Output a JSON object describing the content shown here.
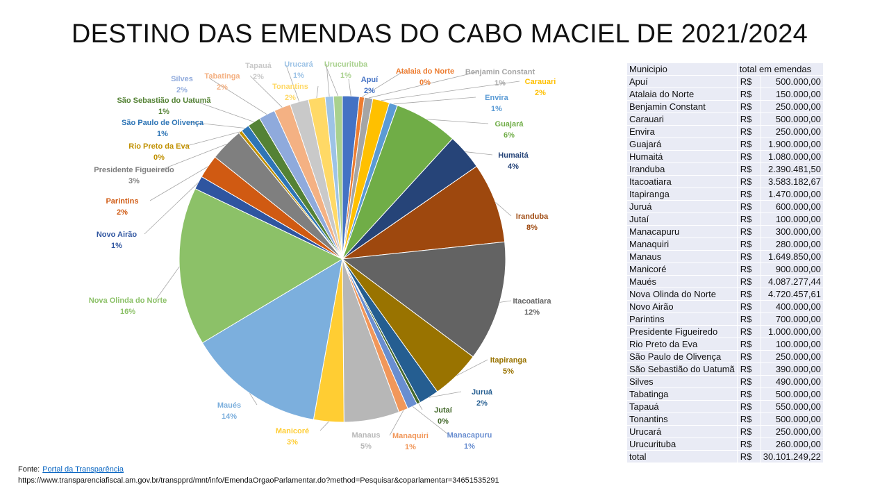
{
  "title": "DESTINO DAS EMENDAS DO CABO MACIEL DE 2021/2024",
  "chart_data": {
    "type": "pie",
    "title": "DESTINO DAS EMENDAS DO CABO MACIEL DE 2021/2024",
    "slices": [
      {
        "label": "Apuí",
        "value": 500000.0,
        "pct_label": "2%",
        "color": "#4472C4"
      },
      {
        "label": "Atalaia do Norte",
        "value": 150000.0,
        "pct_label": "0%",
        "color": "#ED7D31"
      },
      {
        "label": "Benjamin Constant",
        "value": 250000.0,
        "pct_label": "1%",
        "color": "#A5A5A5"
      },
      {
        "label": "Carauari",
        "value": 500000.0,
        "pct_label": "2%",
        "color": "#FFC000"
      },
      {
        "label": "Envira",
        "value": 250000.0,
        "pct_label": "1%",
        "color": "#5B9BD5"
      },
      {
        "label": "Guajará",
        "value": 1900000.0,
        "pct_label": "6%",
        "color": "#70AD47"
      },
      {
        "label": "Humaitá",
        "value": 1080000.0,
        "pct_label": "4%",
        "color": "#264478"
      },
      {
        "label": "Iranduba",
        "value": 2390481.5,
        "pct_label": "8%",
        "color": "#9E480E"
      },
      {
        "label": "Itacoatiara",
        "value": 3583182.67,
        "pct_label": "12%",
        "color": "#636363"
      },
      {
        "label": "Itapiranga",
        "value": 1470000.0,
        "pct_label": "5%",
        "color": "#997300"
      },
      {
        "label": "Juruá",
        "value": 600000.0,
        "pct_label": "2%",
        "color": "#255E91"
      },
      {
        "label": "Jutaí",
        "value": 100000.0,
        "pct_label": "0%",
        "color": "#43682B"
      },
      {
        "label": "Manacapuru",
        "value": 300000.0,
        "pct_label": "1%",
        "color": "#698ED0"
      },
      {
        "label": "Manaquiri",
        "value": 280000.0,
        "pct_label": "1%",
        "color": "#F1975A"
      },
      {
        "label": "Manaus",
        "value": 1649850.0,
        "pct_label": "5%",
        "color": "#B7B7B7"
      },
      {
        "label": "Manicoré",
        "value": 900000.0,
        "pct_label": "3%",
        "color": "#FFCD33"
      },
      {
        "label": "Maués",
        "value": 4087277.44,
        "pct_label": "14%",
        "color": "#7CAFDD"
      },
      {
        "label": "Nova Olinda do Norte",
        "value": 4720457.61,
        "pct_label": "16%",
        "color": "#8CC168"
      },
      {
        "label": "Novo Airão",
        "value": 400000.0,
        "pct_label": "1%",
        "color": "#2F55A0"
      },
      {
        "label": "Parintins",
        "value": 700000.0,
        "pct_label": "2%",
        "color": "#D05A12"
      },
      {
        "label": "Presidente Figueiredo",
        "value": 1000000.0,
        "pct_label": "3%",
        "color": "#7F7F7F"
      },
      {
        "label": "Rio Preto da Eva",
        "value": 100000.0,
        "pct_label": "0%",
        "color": "#C09000"
      },
      {
        "label": "São Paulo de Olivença",
        "value": 250000.0,
        "pct_label": "1%",
        "color": "#2E75B6"
      },
      {
        "label": "São Sebastião do Uatumã",
        "value": 390000.0,
        "pct_label": "1%",
        "color": "#548235"
      },
      {
        "label": "Silves",
        "value": 490000.0,
        "pct_label": "2%",
        "color": "#8FAADC"
      },
      {
        "label": "Tabatinga",
        "value": 500000.0,
        "pct_label": "2%",
        "color": "#F4B183"
      },
      {
        "label": "Tapauá",
        "value": 550000.0,
        "pct_label": "2%",
        "color": "#C9C9C9"
      },
      {
        "label": "Tonantins",
        "value": 500000.0,
        "pct_label": "2%",
        "color": "#FFD966"
      },
      {
        "label": "Urucará",
        "value": 250000.0,
        "pct_label": "1%",
        "color": "#9DC3E6"
      },
      {
        "label": "Urucurituba",
        "value": 260000.0,
        "pct_label": "1%",
        "color": "#A9D18E"
      }
    ]
  },
  "table": {
    "header": [
      "Municipio",
      "total em emendas"
    ],
    "currency": "R$",
    "rows": [
      [
        "Apuí",
        "500.000,00"
      ],
      [
        "Atalaia do Norte",
        "150.000,00"
      ],
      [
        "Benjamin Constant",
        "250.000,00"
      ],
      [
        "Carauari",
        "500.000,00"
      ],
      [
        "Envira",
        "250.000,00"
      ],
      [
        "Guajará",
        "1.900.000,00"
      ],
      [
        "Humaitá",
        "1.080.000,00"
      ],
      [
        "Iranduba",
        "2.390.481,50"
      ],
      [
        "Itacoatiara",
        "3.583.182,67"
      ],
      [
        "Itapiranga",
        "1.470.000,00"
      ],
      [
        "Juruá",
        "600.000,00"
      ],
      [
        "Jutaí",
        "100.000,00"
      ],
      [
        "Manacapuru",
        "300.000,00"
      ],
      [
        "Manaquiri",
        "280.000,00"
      ],
      [
        "Manaus",
        "1.649.850,00"
      ],
      [
        "Manicoré",
        "900.000,00"
      ],
      [
        "Maués",
        "4.087.277,44"
      ],
      [
        "Nova Olinda do Norte",
        "4.720.457,61"
      ],
      [
        "Novo Airão",
        "400.000,00"
      ],
      [
        "Parintins",
        "700.000,00"
      ],
      [
        "Presidente Figueiredo",
        "1.000.000,00"
      ],
      [
        "Rio Preto da Eva",
        "100.000,00"
      ],
      [
        "São Paulo de Olivença",
        "250.000,00"
      ],
      [
        "São Sebastião do Uatumã",
        "390.000,00"
      ],
      [
        "Silves",
        "490.000,00"
      ],
      [
        "Tabatinga",
        "500.000,00"
      ],
      [
        "Tapauá",
        "550.000,00"
      ],
      [
        "Tonantins",
        "500.000,00"
      ],
      [
        "Urucará",
        "250.000,00"
      ],
      [
        "Urucurituba",
        "260.000,00"
      ]
    ],
    "total_label": "total",
    "total_value": "30.101.249,22"
  },
  "source": {
    "prefix": "Fonte:",
    "link_text": "Portal da Transparência",
    "url_text": "https://www.transparenciafiscal.am.gov.br/transpprd/mnt/info/EmendaOrgaoParlamentar.do?method=Pesquisar&coparlamentar=34651535291"
  }
}
